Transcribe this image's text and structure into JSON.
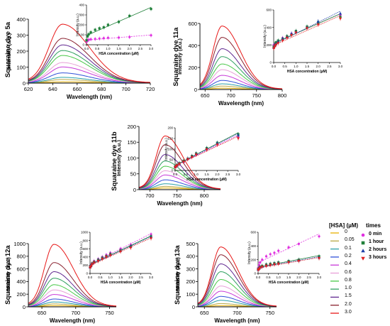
{
  "figure": {
    "hsa_levels": [
      "0",
      "0.05",
      "0.1",
      "0.2",
      "0.4",
      "0.6",
      "0.8",
      "1.0",
      "1.5",
      "2.0",
      "3.0"
    ],
    "level_colors": [
      "#e8b100",
      "#b8a848",
      "#2aa0a8",
      "#3050d8",
      "#c838d8",
      "#e8a0d8",
      "#48c848",
      "#30a060",
      "#602890",
      "#8a2230",
      "#e81818"
    ],
    "legend": {
      "hsa_header": "[HSA] (µM)",
      "times_header": "times",
      "times": [
        {
          "value": "0",
          "unit": "min",
          "marker": "circle",
          "color": "#e030e0"
        },
        {
          "value": "1",
          "unit": "hour",
          "marker": "square",
          "color": "#20803a"
        },
        {
          "value": "2",
          "unit": "hours",
          "marker": "triangle-up",
          "color": "#1c3fa8"
        },
        {
          "value": "3",
          "unit": "hours",
          "marker": "triangle-down",
          "color": "#e02020"
        }
      ]
    }
  },
  "chart_data": [
    {
      "name": "Squaraine dye 5a",
      "type": "line",
      "title": "Squaraine dye 5a",
      "xlabel": "Wavelength (nm)",
      "ylabel": "Intensity (a.u.)",
      "xlim": [
        620,
        720
      ],
      "ylim": [
        0,
        400
      ],
      "xticks": [
        620,
        640,
        660,
        680,
        700,
        720
      ],
      "yticks": [
        0,
        100,
        200,
        300,
        400
      ],
      "peak_wavelength": 648,
      "peaks": [
        8,
        22,
        35,
        62,
        98,
        125,
        168,
        198,
        232,
        272,
        358
      ],
      "inset": {
        "type": "scatter",
        "xlabel": "HSA concentration (µM)",
        "ylabel": "Intensity (a.u.)",
        "xlim": [
          0,
          3.0
        ],
        "ylim": [
          0,
          400
        ],
        "xticks": [
          "0.0",
          "0.5",
          "1.0",
          "1.5",
          "2.0",
          "2.5",
          "3.0"
        ],
        "yticks": [
          0,
          100,
          200,
          300,
          400
        ],
        "x": [
          0,
          0.05,
          0.1,
          0.2,
          0.4,
          0.6,
          0.8,
          1.0,
          1.5,
          2.0,
          3.0
        ],
        "series": [
          {
            "time": "0 min",
            "values": [
              30,
              42,
              50,
              55,
              58,
              62,
              66,
              70,
              72,
              78,
              95
            ]
          },
          {
            "time": "1 hour",
            "values": [
              45,
              85,
              105,
              125,
              150,
              165,
              175,
              200,
              230,
              290,
              360
            ]
          }
        ]
      }
    },
    {
      "name": "Squaraine dye 11a",
      "type": "line",
      "title": "Squaraine dye 11a",
      "xlabel": "Wavelength (nm)",
      "ylabel": "Intensity (a.u.)",
      "xlim": [
        640,
        800
      ],
      "ylim": [
        0,
        600
      ],
      "xticks": [
        650,
        700,
        750,
        800
      ],
      "yticks": [
        0,
        200,
        400,
        600
      ],
      "peak_wavelength": 683,
      "peaks": [
        12,
        30,
        50,
        80,
        125,
        175,
        225,
        290,
        360,
        460,
        560
      ],
      "inset": {
        "type": "scatter",
        "xlabel": "HSA concentration (µM)",
        "ylabel": "Intensity (a.u.)",
        "xlim": [
          0,
          3.0
        ],
        "ylim": [
          0,
          600
        ],
        "xticks": [
          "0.0",
          "0.5",
          "1.0",
          "1.5",
          "2.0",
          "2.5",
          "3.0"
        ],
        "yticks": [
          0,
          200,
          400,
          600
        ],
        "x": [
          0,
          0.05,
          0.1,
          0.2,
          0.4,
          0.6,
          0.8,
          1.0,
          1.5,
          2.0,
          3.0
        ],
        "series": [
          {
            "time": "0 min",
            "values": [
              200,
              210,
              220,
              240,
              280,
              300,
              330,
              350,
              400,
              440,
              540
            ]
          },
          {
            "time": "1 hour",
            "values": [
              180,
              200,
              230,
              250,
              270,
              300,
              320,
              360,
              410,
              460,
              520
            ]
          },
          {
            "time": "2 hours",
            "values": [
              170,
              190,
              210,
              240,
              270,
              290,
              330,
              350,
              400,
              470,
              560
            ]
          },
          {
            "time": "3 hours",
            "values": [
              160,
              180,
              200,
              220,
              250,
              280,
              310,
              340,
              390,
              430,
              500
            ]
          }
        ]
      }
    },
    {
      "name": "Squaraine dye 11b",
      "type": "line",
      "title": "Squaraine dye 11b",
      "xlabel": "Wavelength (nm)",
      "ylabel": "Intensity (a.u.)",
      "xlim": [
        680,
        830
      ],
      "ylim": [
        0,
        200
      ],
      "xticks": [
        700,
        750,
        800
      ],
      "yticks": [
        0,
        50,
        100,
        150,
        200
      ],
      "peak_wavelength": 728,
      "peaks": [
        5,
        10,
        18,
        30,
        45,
        58,
        72,
        88,
        108,
        138,
        165
      ],
      "inset": {
        "type": "scatter",
        "xlabel": "HSA concentration (µM)",
        "ylabel": "Intensity (a.u.)",
        "xlim": [
          0,
          3.0
        ],
        "ylim": [
          0,
          200
        ],
        "xticks": [
          "0.0",
          "0.5",
          "1.0",
          "1.5",
          "2.0",
          "2.5",
          "3.0"
        ],
        "yticks": [
          0,
          50,
          100,
          150,
          200
        ],
        "x": [
          0,
          0.05,
          0.1,
          0.2,
          0.4,
          0.6,
          0.8,
          1.0,
          1.5,
          2.0,
          3.0
        ],
        "series": [
          {
            "time": "0 min",
            "values": [
              15,
              20,
              25,
              30,
              40,
              55,
              65,
              75,
              100,
              125,
              155
            ]
          },
          {
            "time": "1 hour",
            "values": [
              18,
              22,
              26,
              34,
              45,
              55,
              68,
              80,
              105,
              130,
              170
            ]
          },
          {
            "time": "2 hours",
            "values": [
              16,
              21,
              24,
              32,
              42,
              56,
              66,
              78,
              102,
              128,
              165
            ]
          },
          {
            "time": "3 hours",
            "values": [
              14,
              20,
              23,
              30,
              40,
              52,
              62,
              74,
              98,
              120,
              150
            ]
          }
        ]
      }
    },
    {
      "name": "Squaraine dye 12a",
      "type": "line",
      "title": "Squaraine dye 12a",
      "xlabel": "Wavelength (nm)",
      "ylabel": "Intensity (a.u.)",
      "xlim": [
        630,
        760
      ],
      "ylim": [
        0,
        1000
      ],
      "xticks": [
        650,
        700,
        750
      ],
      "yticks": [
        0,
        200,
        400,
        600,
        800,
        1000
      ],
      "peak_wavelength": 668,
      "peaks": [
        20,
        45,
        75,
        120,
        190,
        260,
        340,
        440,
        540,
        680,
        960
      ],
      "inset": {
        "type": "scatter",
        "xlabel": "HSA concentration (µM)",
        "ylabel": "Intensity (a.u.)",
        "xlim": [
          0,
          3.0
        ],
        "ylim": [
          0,
          1000
        ],
        "xticks": [
          "0.0",
          "0.5",
          "1.0",
          "1.5",
          "2.0",
          "2.5",
          "3.0"
        ],
        "yticks": [
          0,
          200,
          400,
          600,
          800,
          1000
        ],
        "x": [
          0,
          0.05,
          0.1,
          0.2,
          0.4,
          0.6,
          0.8,
          1.0,
          1.5,
          2.0,
          3.0
        ],
        "series": [
          {
            "time": "0 min",
            "values": [
              160,
              200,
              250,
              300,
              350,
              400,
              450,
              500,
              600,
              700,
              950
            ]
          },
          {
            "time": "1 hour",
            "values": [
              150,
              190,
              240,
              280,
              330,
              380,
              420,
              470,
              560,
              660,
              900
            ]
          },
          {
            "time": "2 hours",
            "values": [
              150,
              180,
              230,
              270,
              320,
              370,
              410,
              460,
              550,
              650,
              880
            ]
          },
          {
            "time": "3 hours",
            "values": [
              140,
              170,
              220,
              260,
              300,
              350,
              400,
              440,
              530,
              620,
              850
            ]
          }
        ]
      }
    },
    {
      "name": "Squaraine dye 13a",
      "type": "line",
      "title": "Squaraine dye 13a",
      "xlabel": "Wavelength (nm)",
      "ylabel": "Intensity (a.u.)",
      "xlim": [
        640,
        760
      ],
      "ylim": [
        0,
        500
      ],
      "xticks": [
        650,
        700,
        750
      ],
      "yticks": [
        0,
        100,
        200,
        300,
        400,
        500
      ],
      "peak_wavelength": 675,
      "peaks": [
        10,
        25,
        50,
        80,
        120,
        160,
        210,
        270,
        330,
        400,
        460
      ],
      "inset": {
        "type": "scatter",
        "xlabel": "HSA concentration (µM)",
        "ylabel": "Intensity (a.u.)",
        "xlim": [
          0,
          3.0
        ],
        "ylim": [
          0,
          600
        ],
        "xticks": [
          "0.0",
          "0.5",
          "1.0",
          "1.5",
          "2.0",
          "2.5",
          "3.0"
        ],
        "yticks": [
          0,
          200,
          400,
          600
        ],
        "x": [
          0,
          0.05,
          0.1,
          0.2,
          0.4,
          0.6,
          0.8,
          1.0,
          1.5,
          2.0,
          3.0
        ],
        "series": [
          {
            "time": "0 min",
            "values": [
              80,
              120,
              160,
              200,
              250,
              280,
              300,
              330,
              380,
              430,
              540
            ]
          },
          {
            "time": "1 hour",
            "values": [
              60,
              80,
              95,
              110,
              130,
              140,
              150,
              160,
              180,
              200,
              250
            ]
          },
          {
            "time": "2 hours",
            "values": [
              55,
              72,
              88,
              100,
              120,
              130,
              140,
              150,
              170,
              190,
              230
            ]
          },
          {
            "time": "3 hours",
            "values": [
              50,
              65,
              80,
              95,
              110,
              120,
              130,
              140,
              160,
              180,
              220
            ]
          }
        ]
      }
    }
  ]
}
